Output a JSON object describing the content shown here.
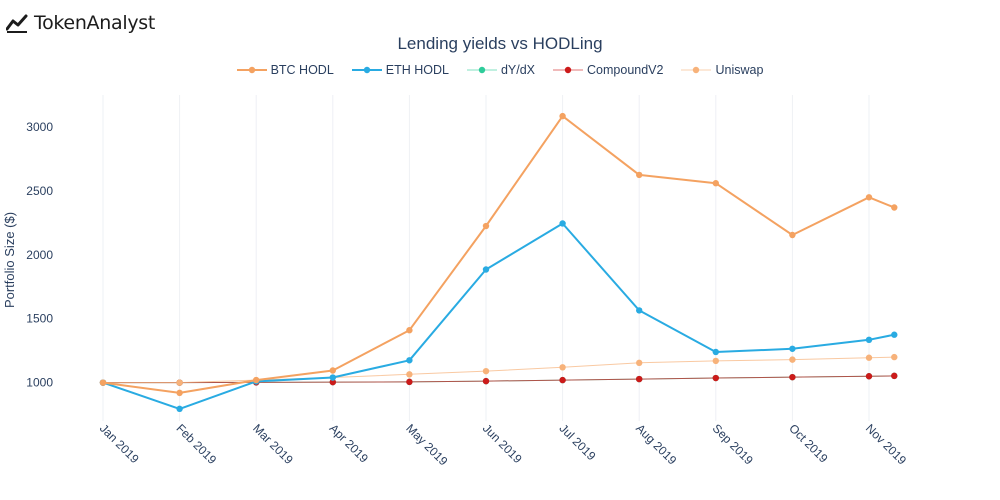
{
  "brand": {
    "name": "TokenAnalyst",
    "icon": "trend-line-icon"
  },
  "chart_data": {
    "type": "line",
    "title": "Lending yields vs HODLing",
    "xlabel": "",
    "ylabel": "Portfolio Size ($)",
    "categories": [
      "Jan 2019",
      "Feb 2019",
      "Mar 2019",
      "Apr 2019",
      "May 2019",
      "Jun 2019",
      "Jul 2019",
      "Aug 2019",
      "Sep 2019",
      "Oct 2019",
      "Nov 2019"
    ],
    "yticks": [
      1000,
      1500,
      2000,
      2500,
      3000
    ],
    "ylim": [
      700,
      3250
    ],
    "grid": "vertical",
    "legend_position": "top",
    "series": [
      {
        "name": "BTC HODL",
        "color": "#f4a261",
        "width": 2,
        "x": [
          0,
          1,
          2,
          3,
          4,
          5,
          6,
          7,
          8,
          9,
          10,
          10.33
        ],
        "y": [
          1000,
          920,
          1020,
          1095,
          1410,
          2225,
          3085,
          2625,
          2560,
          2155,
          2450,
          2370
        ]
      },
      {
        "name": "ETH HODL",
        "color": "#29abe2",
        "width": 2,
        "x": [
          0,
          1,
          2,
          3,
          4,
          5,
          6,
          7,
          8,
          9,
          10,
          10.33
        ],
        "y": [
          1000,
          795,
          1010,
          1040,
          1175,
          1885,
          2245,
          1565,
          1240,
          1265,
          1335,
          1375
        ]
      },
      {
        "name": "dY/dX",
        "color": "#2ecc9a",
        "width": 1,
        "x": [
          0,
          1,
          2,
          3,
          4,
          5,
          6,
          7,
          8,
          9,
          10,
          10.33
        ],
        "y": [
          1000,
          1000,
          1002,
          1004,
          1006,
          1012,
          1020,
          1028,
          1036,
          1043,
          1050,
          1053
        ]
      },
      {
        "name": "CompoundV2",
        "color": "#cc1a1a",
        "width": 1,
        "x": [
          0,
          1,
          2,
          3,
          4,
          5,
          6,
          7,
          8,
          9,
          10,
          10.33
        ],
        "y": [
          1000,
          1000,
          1002,
          1004,
          1006,
          1012,
          1020,
          1028,
          1036,
          1043,
          1050,
          1053
        ]
      },
      {
        "name": "Uniswap",
        "color": "#f7b27a",
        "width": 1,
        "x": [
          0,
          1,
          2,
          3,
          4,
          5,
          6,
          7,
          8,
          9,
          10,
          10.33
        ],
        "y": [
          1000,
          1000,
          1020,
          1040,
          1065,
          1090,
          1120,
          1155,
          1170,
          1180,
          1195,
          1200
        ]
      }
    ]
  }
}
